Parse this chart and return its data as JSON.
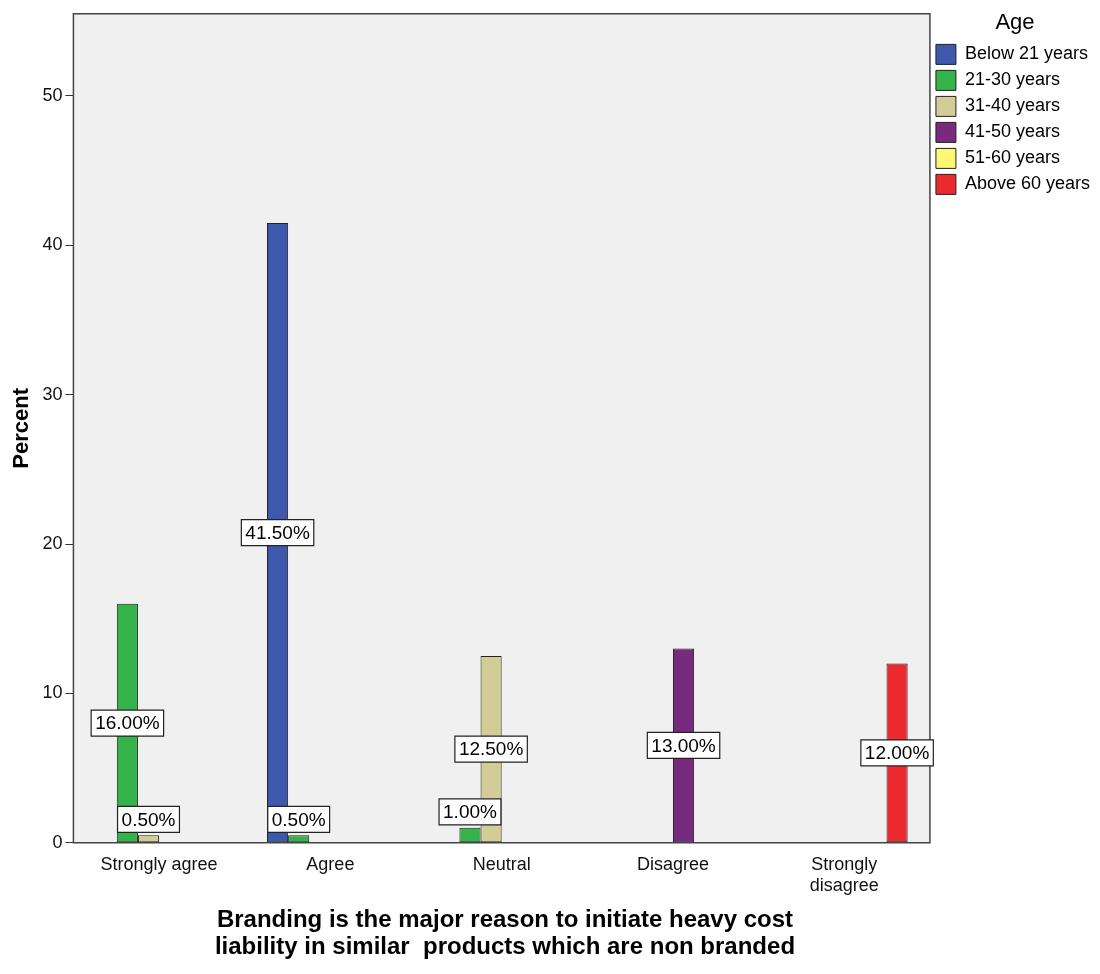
{
  "chart_data": {
    "type": "bar",
    "xlabel": "Branding is the major reason to initiate heavy cost liability in similar  products which are non branded",
    "ylabel": "Percent",
    "legend_title": "Age",
    "legend": "top right",
    "grid": false,
    "categories": [
      "Strongly agree",
      "Agree",
      "Neutral",
      "Disagree",
      "Strongly disagree"
    ],
    "series": [
      {
        "name": "Below 21 years",
        "color": "#3e58ac",
        "values": [
          null,
          41.5,
          null,
          null,
          null
        ],
        "value_labels": [
          null,
          "41.50%",
          null,
          null,
          null
        ]
      },
      {
        "name": "21-30 years",
        "color": "#34b34a",
        "values": [
          16,
          0.5,
          1,
          null,
          null
        ],
        "value_labels": [
          "16.00%",
          "0.50%",
          "1.00%",
          null,
          null
        ]
      },
      {
        "name": "31-40 years",
        "color": "#d2cc96",
        "values": [
          0.5,
          null,
          12.5,
          null,
          null
        ],
        "value_labels": [
          "0.50%",
          null,
          "12.50%",
          null,
          null
        ]
      },
      {
        "name": "41-50 years",
        "color": "#782a7f",
        "values": [
          null,
          null,
          null,
          13,
          null
        ],
        "value_labels": [
          null,
          null,
          null,
          "13.00%",
          null
        ]
      },
      {
        "name": "51-60 years",
        "color": "#fbf873",
        "values": [
          null,
          null,
          null,
          null,
          null
        ],
        "value_labels": [
          null,
          null,
          null,
          null,
          null
        ]
      },
      {
        "name": "Above 60 years",
        "color": "#ed2b2f",
        "values": [
          null,
          null,
          null,
          null,
          12
        ],
        "value_labels": [
          null,
          null,
          null,
          null,
          "12.00%"
        ]
      }
    ],
    "ylim": [
      0,
      55.5
    ],
    "yticks": [
      0,
      10,
      20,
      30,
      40,
      50
    ]
  }
}
